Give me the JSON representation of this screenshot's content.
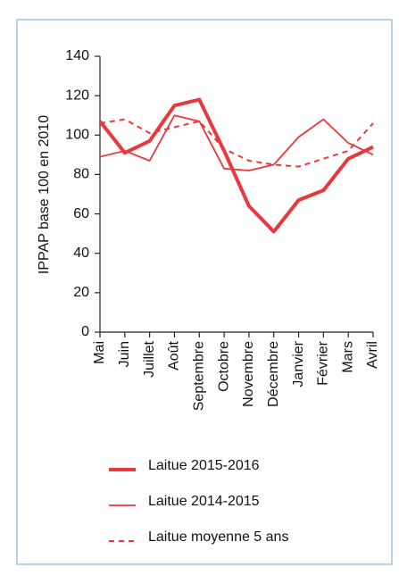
{
  "chart_data": {
    "type": "line",
    "y_label": "IPPAP base 100 en 2010",
    "categories": [
      "Mai",
      "Juin",
      "Juillet",
      "Août",
      "Septembre",
      "Octobre",
      "Novembre",
      "Décembre",
      "Janvier",
      "Février",
      "Mars",
      "Avril"
    ],
    "series": [
      {
        "name": "Laitue 2015-2016",
        "color": "#e8383d",
        "style": "thick",
        "values": [
          107,
          91,
          97,
          115,
          118,
          92,
          64,
          51,
          67,
          72,
          88,
          94
        ]
      },
      {
        "name": "Laitue 2014-2015",
        "color": "#e8383d",
        "style": "thin",
        "values": [
          89,
          92,
          87,
          110,
          107,
          83,
          82,
          85,
          99,
          108,
          96,
          90
        ]
      },
      {
        "name": "Laitue moyenne 5 ans",
        "color": "#e8383d",
        "style": "dashed",
        "values": [
          106,
          108,
          101,
          104,
          107,
          93,
          87,
          85,
          84,
          88,
          92,
          106
        ]
      }
    ],
    "ylim": [
      0,
      140
    ],
    "yticks": [
      0,
      20,
      40,
      60,
      80,
      100,
      120,
      140
    ],
    "grid": false,
    "legend": "bottom"
  }
}
